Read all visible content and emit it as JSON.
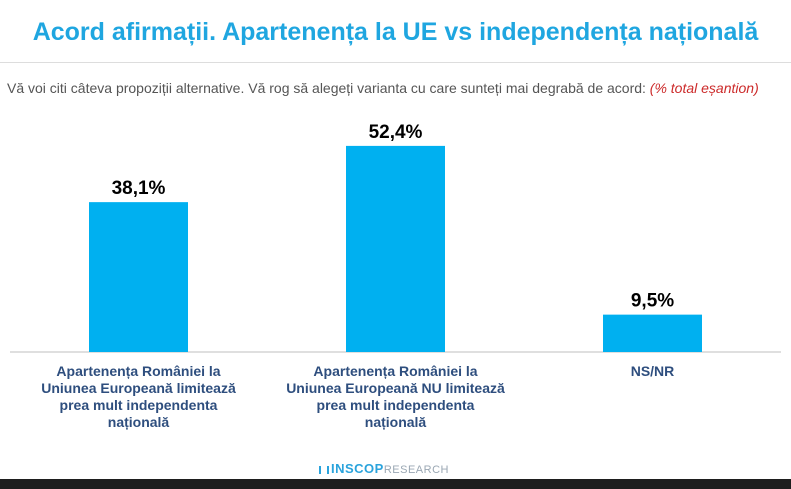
{
  "header": {
    "title": "Acord afirmații. Apartenența la UE vs independența națională"
  },
  "question": {
    "text": "Vă voi citi câteva propoziții alternative. Vă rog să alegeți varianta cu care sunteți mai degrabă de acord: ",
    "note": "(% total eșantion)"
  },
  "footer": {
    "brand": "INSCOP",
    "suffix": "RESEARCH"
  },
  "colors": {
    "bar": "#00b0f0",
    "title": "#1fa6e0",
    "category_label": "#2e4e7e"
  },
  "chart_data": {
    "type": "bar",
    "title": "",
    "xlabel": "",
    "ylabel": "",
    "ylim": [
      0,
      60
    ],
    "grid": false,
    "categories": [
      [
        "Apartenența României la",
        "Uniunea Europeană limitează",
        "prea mult independenta",
        "națională"
      ],
      [
        "Apartenența României la",
        "Uniunea Europeană NU limitează",
        "prea mult independenta",
        "națională"
      ],
      [
        "NS/NR"
      ]
    ],
    "values": [
      38.1,
      52.4,
      9.5
    ],
    "value_labels": [
      "38,1%",
      "52,4%",
      "9,5%"
    ]
  }
}
